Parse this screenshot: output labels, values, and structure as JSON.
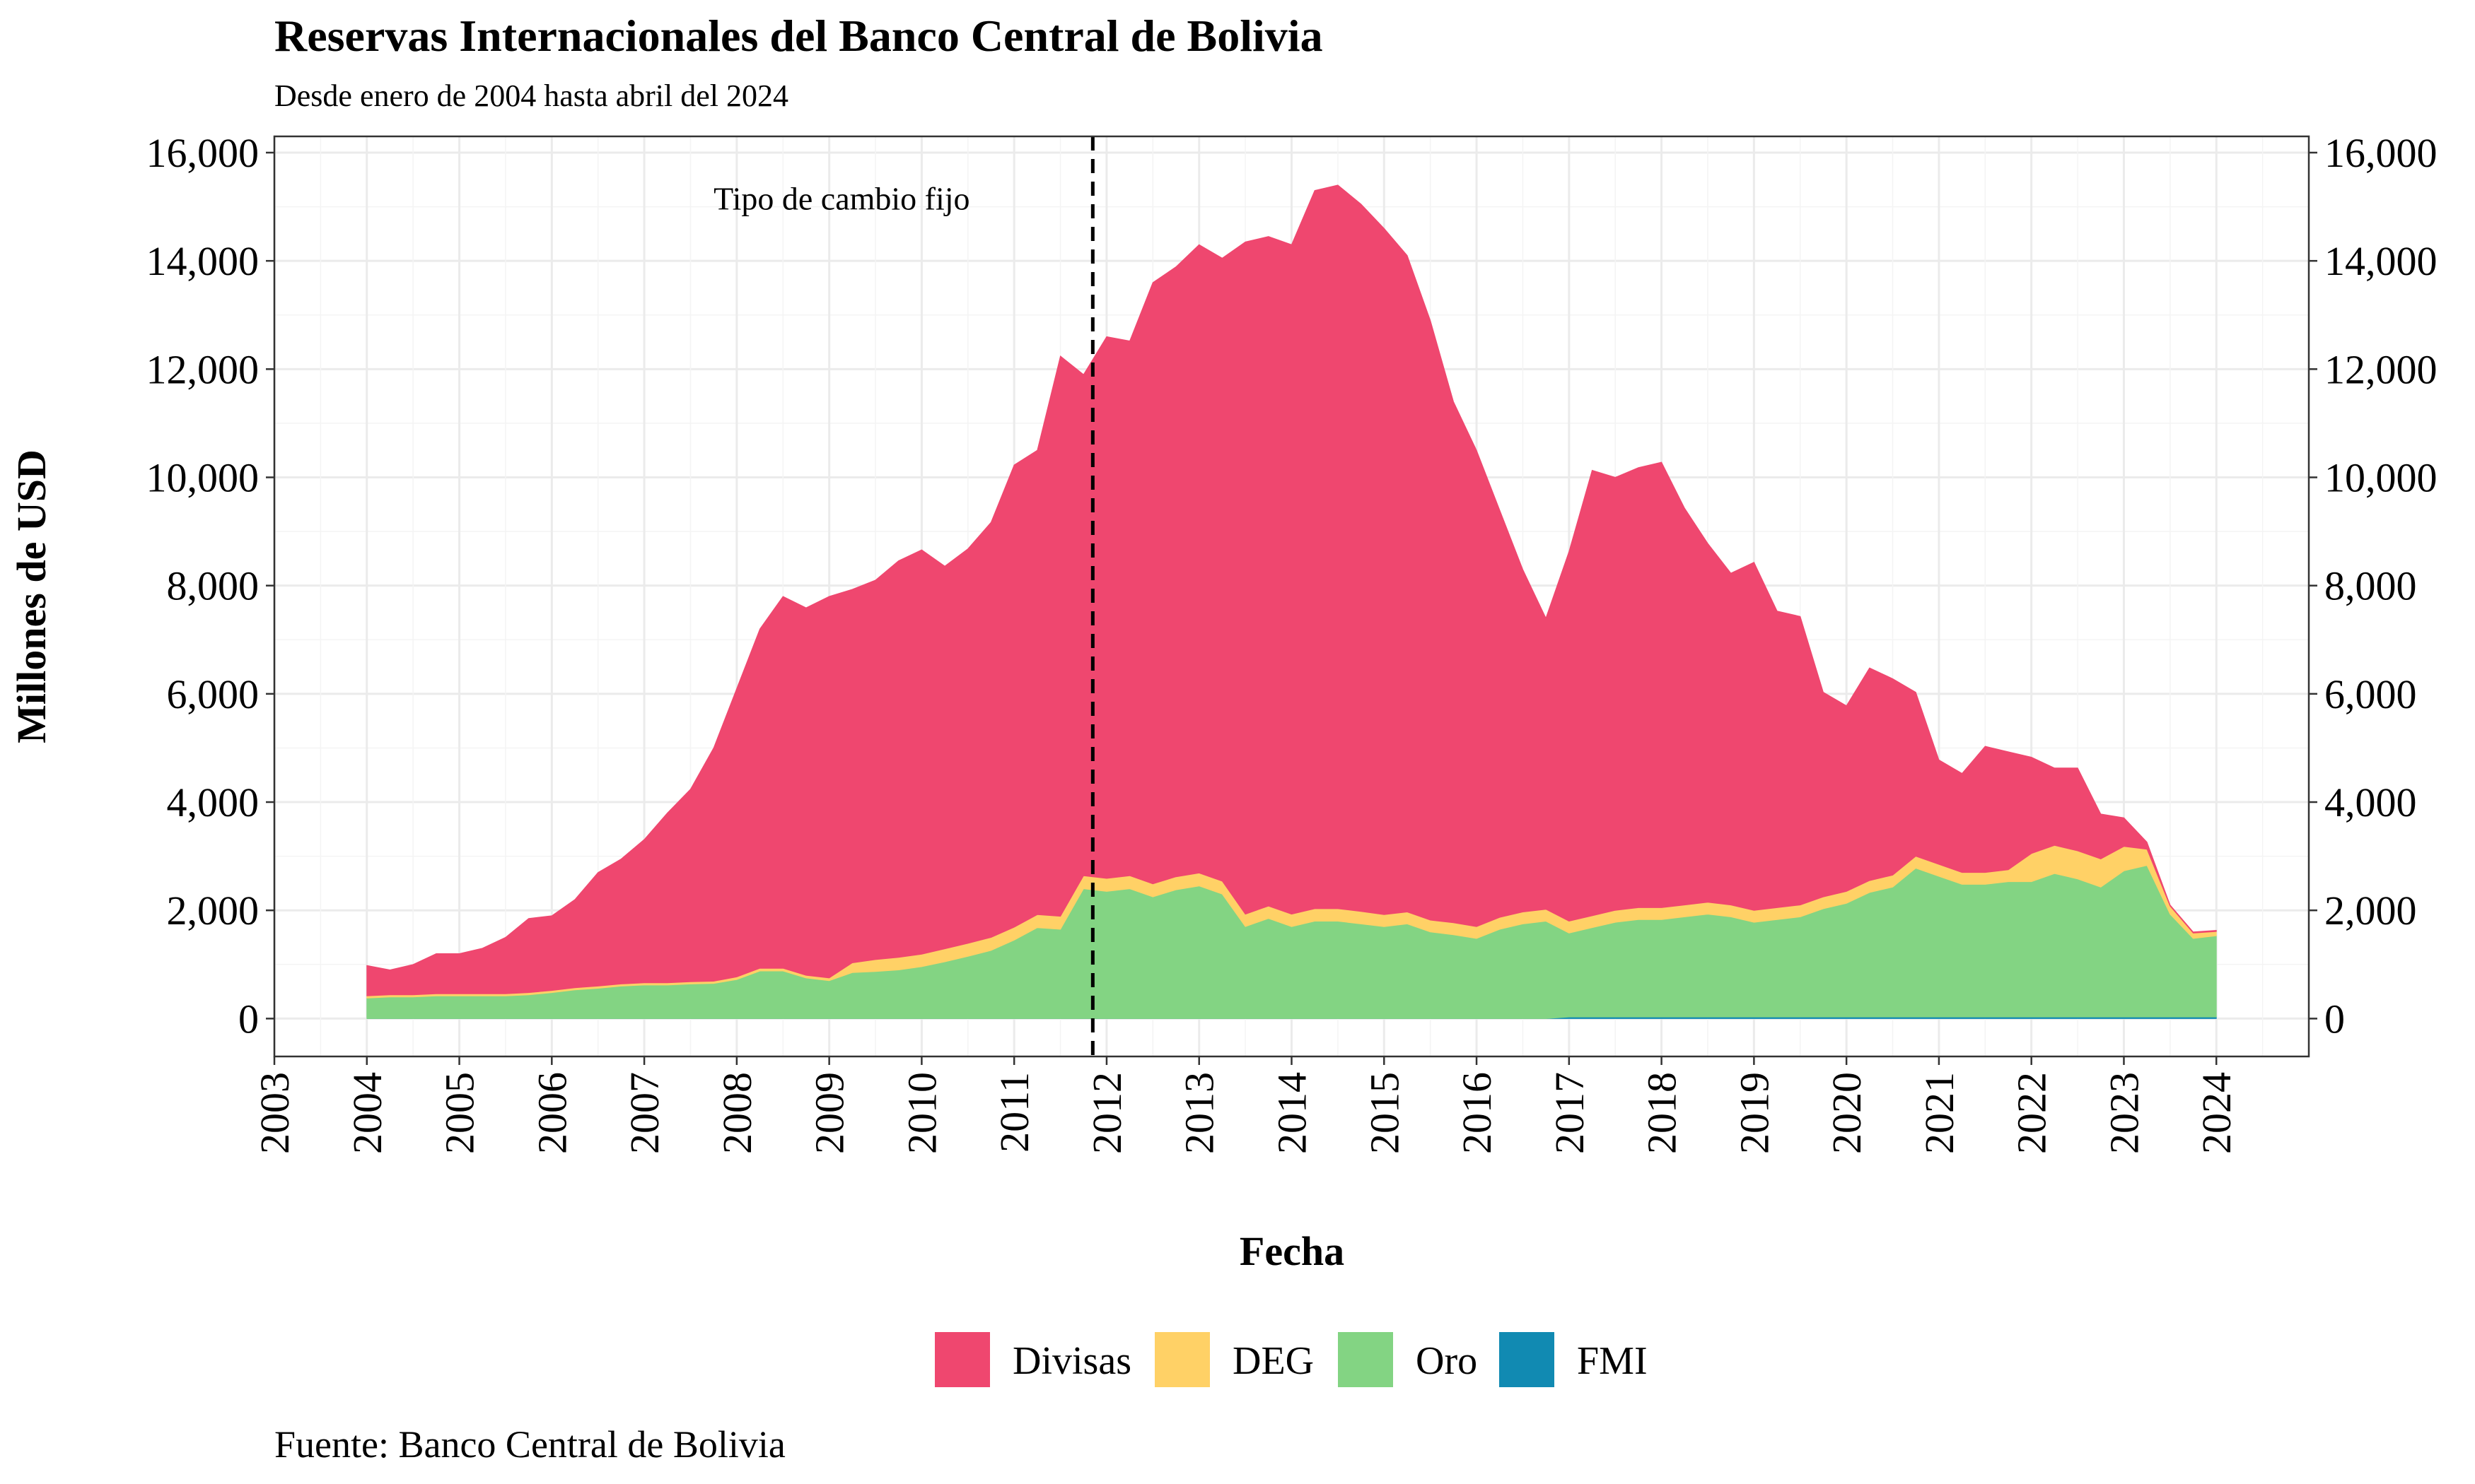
{
  "chart_data": {
    "type": "area",
    "title": "Reservas Internacionales del Banco Central de Bolivia",
    "subtitle": "Desde enero de 2004 hasta abril del 2024",
    "xlabel": "Fecha",
    "ylabel": "Millones de USD",
    "caption": "Fuente: Banco Central de Bolivia",
    "stacked": true,
    "grid": true,
    "legend_position": "bottom",
    "xlim": [
      2003.0,
      2025.0
    ],
    "ylim": [
      -700,
      16300
    ],
    "x_ticks": [
      2003,
      2004,
      2005,
      2006,
      2007,
      2008,
      2009,
      2010,
      2011,
      2012,
      2013,
      2014,
      2015,
      2016,
      2017,
      2018,
      2019,
      2020,
      2021,
      2022,
      2023,
      2024
    ],
    "x_tick_labels": [
      "2003",
      "2004",
      "2005",
      "2006",
      "2007",
      "2008",
      "2009",
      "2010",
      "2011",
      "2012",
      "2013",
      "2014",
      "2015",
      "2016",
      "2017",
      "2018",
      "2019",
      "2020",
      "2021",
      "2022",
      "2023",
      "2024"
    ],
    "y_ticks": [
      0,
      2000,
      4000,
      6000,
      8000,
      10000,
      12000,
      14000,
      16000
    ],
    "y_tick_labels": [
      "0",
      "2,000",
      "4,000",
      "6,000",
      "8,000",
      "10,000",
      "12,000",
      "14,000",
      "16,000"
    ],
    "annotation": {
      "x": 2011.85,
      "text": "Tipo de cambio fijo",
      "style": "dashed vertical line"
    },
    "x": [
      2004.0,
      2004.25,
      2004.5,
      2004.75,
      2005.0,
      2005.25,
      2005.5,
      2005.75,
      2006.0,
      2006.25,
      2006.5,
      2006.75,
      2007.0,
      2007.25,
      2007.5,
      2007.75,
      2008.0,
      2008.25,
      2008.5,
      2008.75,
      2009.0,
      2009.25,
      2009.5,
      2009.75,
      2010.0,
      2010.25,
      2010.5,
      2010.75,
      2011.0,
      2011.25,
      2011.5,
      2011.75,
      2012.0,
      2012.25,
      2012.5,
      2012.75,
      2013.0,
      2013.25,
      2013.5,
      2013.75,
      2014.0,
      2014.25,
      2014.5,
      2014.75,
      2015.0,
      2015.25,
      2015.5,
      2015.75,
      2016.0,
      2016.25,
      2016.5,
      2016.75,
      2017.0,
      2017.25,
      2017.5,
      2017.75,
      2018.0,
      2018.25,
      2018.5,
      2018.75,
      2019.0,
      2019.25,
      2019.5,
      2019.75,
      2020.0,
      2020.25,
      2020.5,
      2020.75,
      2021.0,
      2021.25,
      2021.5,
      2021.75,
      2022.0,
      2022.25,
      2022.5,
      2022.75,
      2023.0,
      2023.25,
      2023.5,
      2023.75,
      2024.0
    ],
    "series": [
      {
        "name": "FMI",
        "color": "#118AB2",
        "values": [
          0,
          0,
          0,
          0,
          0,
          0,
          0,
          0,
          0,
          0,
          0,
          0,
          0,
          0,
          0,
          0,
          0,
          0,
          0,
          0,
          0,
          0,
          0,
          0,
          0,
          0,
          0,
          0,
          0,
          0,
          0,
          0,
          0,
          0,
          0,
          0,
          0,
          0,
          0,
          0,
          0,
          0,
          0,
          0,
          0,
          0,
          0,
          0,
          0,
          0,
          0,
          0,
          30,
          30,
          30,
          30,
          30,
          30,
          30,
          30,
          30,
          30,
          30,
          30,
          30,
          30,
          30,
          30,
          30,
          30,
          30,
          30,
          30,
          30,
          30,
          30,
          30,
          30,
          30,
          30,
          30
        ]
      },
      {
        "name": "Oro",
        "color": "#83D483",
        "values": [
          380,
          400,
          400,
          420,
          420,
          420,
          420,
          440,
          480,
          530,
          560,
          600,
          620,
          620,
          640,
          650,
          720,
          880,
          880,
          750,
          700,
          850,
          870,
          900,
          960,
          1050,
          1150,
          1260,
          1450,
          1680,
          1650,
          2400,
          2350,
          2400,
          2250,
          2380,
          2450,
          2300,
          1700,
          1850,
          1700,
          1800,
          1800,
          1750,
          1700,
          1750,
          1600,
          1550,
          1480,
          1650,
          1750,
          1800,
          1550,
          1650,
          1750,
          1800,
          1800,
          1850,
          1900,
          1850,
          1750,
          1800,
          1850,
          2000,
          2100,
          2300,
          2400,
          2750,
          2600,
          2450,
          2450,
          2500,
          2500,
          2650,
          2550,
          2400,
          2700,
          2800,
          1900,
          1450,
          1500
        ]
      },
      {
        "name": "DEG",
        "color": "#FFD166",
        "values": [
          40,
          40,
          40,
          40,
          40,
          40,
          40,
          40,
          40,
          40,
          40,
          40,
          40,
          40,
          40,
          40,
          50,
          50,
          50,
          50,
          50,
          180,
          220,
          230,
          230,
          240,
          240,
          240,
          240,
          240,
          240,
          240,
          240,
          240,
          240,
          240,
          240,
          240,
          230,
          230,
          230,
          230,
          230,
          230,
          220,
          220,
          220,
          220,
          220,
          220,
          220,
          220,
          220,
          220,
          220,
          220,
          220,
          220,
          220,
          220,
          220,
          220,
          220,
          220,
          220,
          220,
          220,
          220,
          220,
          220,
          220,
          220,
          520,
          520,
          520,
          520,
          450,
          300,
          150,
          100,
          80
        ]
      },
      {
        "name": "Divisas",
        "color": "#EF476F",
        "values": [
          560,
          460,
          560,
          740,
          740,
          840,
          1040,
          1370,
          1380,
          1630,
          2100,
          2310,
          2650,
          3140,
          3560,
          4310,
          5330,
          6270,
          6870,
          6790,
          7050,
          6900,
          7010,
          7330,
          7470,
          7070,
          7290,
          7670,
          8540,
          8580,
          10350,
          9260,
          10010,
          9880,
          11110,
          11270,
          11610,
          11510,
          12420,
          12370,
          12370,
          13270,
          13370,
          13070,
          12680,
          12130,
          11080,
          9630,
          8800,
          7530,
          6330,
          5380,
          6830,
          8230,
          8000,
          8130,
          8230,
          7330,
          6630,
          6130,
          6430,
          5480,
          5330,
          3780,
          3430,
          3930,
          3630,
          3030,
          1930,
          1830,
          2330,
          2180,
          1780,
          1430,
          1530,
          830,
          530,
          130,
          20,
          20,
          20
        ]
      }
    ],
    "legend": [
      {
        "name": "Divisas",
        "color": "#EF476F"
      },
      {
        "name": "DEG",
        "color": "#FFD166"
      },
      {
        "name": "Oro",
        "color": "#83D483"
      },
      {
        "name": "FMI",
        "color": "#118AB2"
      }
    ]
  }
}
